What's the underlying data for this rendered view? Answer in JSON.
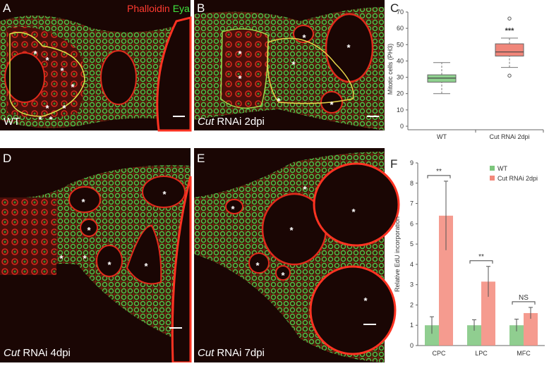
{
  "panels": [
    {
      "letter": "A",
      "stain_labels": [
        "Phalloidin",
        "Eya"
      ],
      "caption": "WT",
      "markers": [
        "*",
        "*",
        "*",
        "*",
        "*",
        "*",
        "*",
        "*"
      ]
    },
    {
      "letter": "B",
      "caption_italic": "Cut",
      "caption": "RNAi 2dpi",
      "markers": [
        "*",
        "*",
        "*",
        "*",
        "*",
        "*",
        "*"
      ]
    },
    {
      "letter": "D",
      "caption_italic": "Cut",
      "caption": "RNAi 4dpi",
      "markers": [
        "*",
        "*",
        "*",
        "*",
        "*",
        "*",
        "*"
      ]
    },
    {
      "letter": "E",
      "caption_italic": "Cut",
      "caption": "RNAi 7dpi",
      "markers": [
        "*",
        "*",
        "*",
        "*",
        "*",
        "*",
        "*"
      ]
    }
  ],
  "chart_data": [
    {
      "type": "box",
      "label": "C",
      "y_label": "Mitotic cells (PH3)",
      "categories": [
        "WT",
        "Cut RNAi 2dpi"
      ],
      "boxes": [
        {
          "min": 20,
          "q1": 27,
          "median": 29.5,
          "q3": 31.5,
          "max": 39,
          "outliers": []
        },
        {
          "min": 36,
          "q1": 43,
          "median": 45.5,
          "q3": 50.5,
          "max": 54,
          "outliers": [
            31,
            66
          ]
        }
      ],
      "colors": [
        "#8fd18f",
        "#f0867a"
      ],
      "annotation": "***",
      "ylim": [
        0,
        70
      ],
      "yticks": [
        0,
        10,
        20,
        30,
        40,
        50,
        60,
        70
      ]
    },
    {
      "type": "bar",
      "label": "F",
      "y_label": "Relative EdU incorporation",
      "categories": [
        "CPC",
        "LPC",
        "MFC"
      ],
      "series": [
        {
          "name": "WT",
          "color": "#7dc67d",
          "values": [
            1,
            1,
            1
          ],
          "errors": [
            0.42,
            0.27,
            0.3
          ]
        },
        {
          "name": "Cut RNAi 2dpi",
          "color": "#f3897b",
          "values": [
            6.4,
            3.15,
            1.6
          ],
          "errors": [
            1.7,
            0.75,
            0.28
          ]
        }
      ],
      "annotations": [
        "**",
        "**",
        "NS"
      ],
      "ylim": [
        0,
        9
      ],
      "yticks": [
        0,
        1,
        2,
        3,
        4,
        5,
        6,
        7,
        8,
        9
      ],
      "legend": "top-right"
    }
  ]
}
